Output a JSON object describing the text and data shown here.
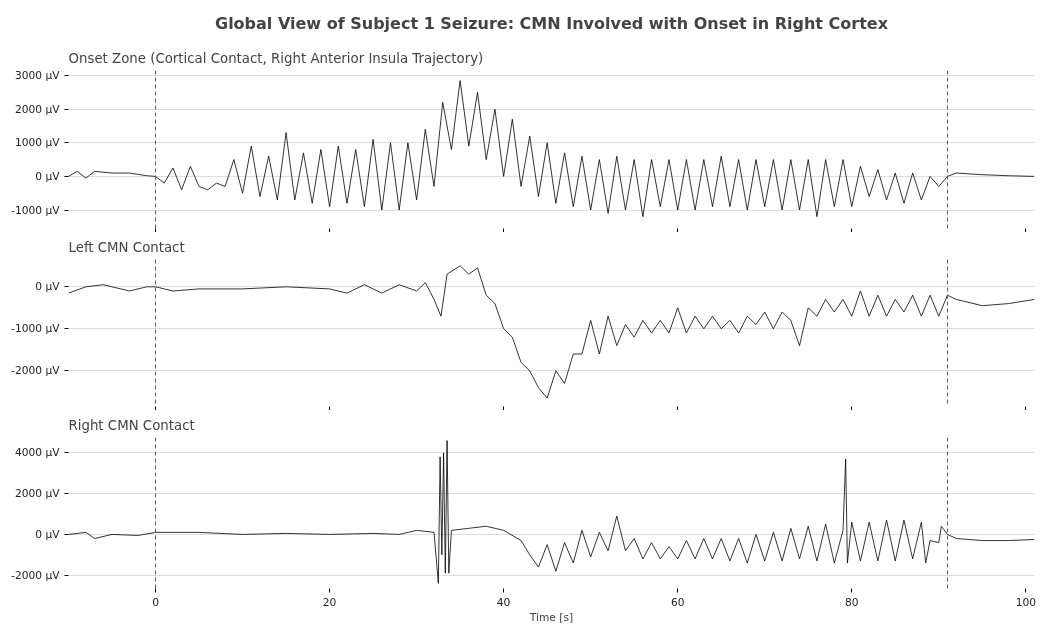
{
  "chart_data": [
    {
      "type": "line",
      "title": "Global View of Subject 1 Seizure: CMN Involved with Onset in Right Cortex",
      "subtitle": "Onset Zone (Cortical Contact, Right Anterior Insula Trajectory)",
      "xlim": [
        -10,
        101
      ],
      "xticks": [
        0,
        20,
        40,
        60,
        80,
        100
      ],
      "ylim": [
        -1550,
        3150
      ],
      "yticks": [
        {
          "value": -1000,
          "label": "-1000 µV"
        },
        {
          "value": 0,
          "label": "0 µV"
        },
        {
          "value": 1000,
          "label": "1000 µV"
        },
        {
          "value": 2000,
          "label": "2000 µV"
        },
        {
          "value": 3000,
          "label": "3000 µV"
        }
      ],
      "grid": "y",
      "tick_labels": "y",
      "series": [
        {
          "color": "#000000",
          "x": [
            -10,
            -9,
            -8,
            -7,
            -5,
            -3,
            -1,
            0,
            1,
            2,
            3,
            4,
            5,
            6,
            7,
            8,
            9,
            10,
            11,
            12,
            13,
            14,
            15,
            16,
            17,
            18,
            19,
            20,
            21,
            22,
            23,
            24,
            25,
            26,
            27,
            28,
            29,
            30,
            31,
            32,
            33,
            34,
            35,
            36,
            37,
            38,
            39,
            40,
            41,
            42,
            43,
            44,
            45,
            46,
            47,
            48,
            49,
            50,
            51,
            52,
            53,
            54,
            55,
            56,
            57,
            58,
            59,
            60,
            61,
            62,
            63,
            64,
            65,
            66,
            67,
            68,
            69,
            70,
            71,
            72,
            73,
            74,
            75,
            76,
            77,
            78,
            79,
            80,
            81,
            82,
            83,
            84,
            85,
            86,
            87,
            88,
            89,
            90,
            91,
            92,
            95,
            98,
            101
          ],
          "values": [
            0,
            150,
            -50,
            150,
            100,
            100,
            20,
            0,
            -200,
            250,
            -400,
            300,
            -300,
            -400,
            -200,
            -300,
            500,
            -500,
            900,
            -600,
            600,
            -700,
            1300,
            -700,
            700,
            -800,
            800,
            -900,
            900,
            -800,
            800,
            -900,
            1100,
            -1000,
            1000,
            -1000,
            1000,
            -700,
            1400,
            -300,
            2200,
            800,
            2850,
            900,
            2500,
            500,
            2000,
            0,
            1700,
            -300,
            1200,
            -600,
            1000,
            -800,
            700,
            -900,
            600,
            -1000,
            500,
            -1100,
            600,
            -1000,
            500,
            -1200,
            500,
            -900,
            500,
            -1000,
            500,
            -1000,
            500,
            -900,
            600,
            -900,
            500,
            -1000,
            500,
            -900,
            500,
            -1000,
            500,
            -1000,
            500,
            -1200,
            500,
            -900,
            500,
            -900,
            300,
            -600,
            200,
            -700,
            100,
            -800,
            100,
            -700,
            0,
            -300,
            0,
            100,
            50,
            20,
            0
          ]
        }
      ],
      "ref_lines": [
        {
          "axis": "x",
          "value": 0,
          "color": "#d62728",
          "line_style": "dashed"
        },
        {
          "axis": "x",
          "value": 91,
          "color": "#d62728",
          "line_style": "dashed"
        }
      ]
    },
    {
      "type": "line",
      "title": "Left CMN Contact",
      "xlim": [
        -10,
        101
      ],
      "xticks": [
        0,
        20,
        40,
        60,
        80,
        100
      ],
      "ylim": [
        -2850,
        650
      ],
      "yticks": [
        {
          "value": -2000,
          "label": "-2000 µV"
        },
        {
          "value": -1000,
          "label": "-1000 µV"
        },
        {
          "value": 0,
          "label": "0 µV"
        }
      ],
      "grid": "y",
      "tick_labels": "y",
      "series": [
        {
          "color": "#000000",
          "x": [
            -10,
            -8,
            -6,
            -3,
            -1,
            0,
            2,
            5,
            10,
            15,
            20,
            22,
            24,
            26,
            28,
            30,
            31,
            32,
            32.8,
            33.5,
            35,
            36,
            37,
            38,
            39,
            40,
            41,
            42,
            43,
            44,
            45,
            46,
            47,
            48,
            49,
            50,
            51,
            52,
            53,
            54,
            55,
            56,
            57,
            58,
            59,
            60,
            61,
            62,
            63,
            64,
            65,
            66,
            67,
            68,
            69,
            70,
            71,
            72,
            73,
            74,
            75,
            76,
            77,
            78,
            79,
            80,
            81,
            82,
            83,
            84,
            85,
            86,
            87,
            88,
            89,
            90,
            91,
            92,
            95,
            98,
            101
          ],
          "values": [
            -150,
            0,
            50,
            -100,
            0,
            0,
            -100,
            -50,
            -50,
            0,
            -50,
            -150,
            50,
            -150,
            50,
            -100,
            100,
            -300,
            -700,
            300,
            500,
            300,
            450,
            -200,
            -400,
            -1000,
            -1200,
            -1800,
            -2000,
            -2400,
            -2650,
            -2000,
            -2300,
            -1600,
            -1600,
            -800,
            -1600,
            -700,
            -1400,
            -900,
            -1200,
            -800,
            -1100,
            -800,
            -1100,
            -500,
            -1100,
            -700,
            -1000,
            -700,
            -1000,
            -800,
            -1100,
            -700,
            -900,
            -600,
            -1000,
            -600,
            -800,
            -1400,
            -500,
            -700,
            -300,
            -600,
            -300,
            -700,
            -100,
            -700,
            -200,
            -700,
            -300,
            -600,
            -200,
            -700,
            -200,
            -700,
            -200,
            -300,
            -450,
            -400,
            -300
          ]
        }
      ],
      "ref_lines": [
        {
          "axis": "x",
          "value": 0,
          "color": "#d62728",
          "line_style": "dashed"
        },
        {
          "axis": "x",
          "value": 91,
          "color": "#d62728",
          "line_style": "dashed"
        }
      ]
    },
    {
      "type": "line",
      "title": "Right CMN Contact",
      "xlabel": "Time [s]",
      "xlim": [
        -10,
        101
      ],
      "xticks": [
        0,
        20,
        40,
        60,
        80,
        100
      ],
      "ylim": [
        -2650,
        4750
      ],
      "yticks": [
        {
          "value": -2000,
          "label": "-2000 µV"
        },
        {
          "value": 0,
          "label": "0 µV"
        },
        {
          "value": 2000,
          "label": "2000 µV"
        },
        {
          "value": 4000,
          "label": "4000 µV"
        }
      ],
      "grid": "y",
      "series": [
        {
          "color": "#000000",
          "x": [
            -10,
            -8,
            -7,
            -5,
            -2,
            0,
            5,
            10,
            15,
            20,
            25,
            28,
            30,
            32,
            32.5,
            32.7,
            32.9,
            33.1,
            33.3,
            33.5,
            33.7,
            34,
            36,
            38,
            40,
            42,
            43,
            44,
            45,
            46,
            47,
            48,
            49,
            50,
            51,
            52,
            53,
            54,
            55,
            56,
            57,
            58,
            59,
            60,
            61,
            62,
            63,
            64,
            65,
            66,
            67,
            68,
            69,
            70,
            71,
            72,
            73,
            74,
            75,
            76,
            77,
            78,
            79,
            79.3,
            79.5,
            80,
            81,
            82,
            83,
            84,
            85,
            86,
            87,
            88,
            88.5,
            89,
            90,
            90.3,
            91,
            92,
            95,
            98,
            101
          ],
          "values": [
            0,
            100,
            -200,
            0,
            -50,
            100,
            100,
            0,
            50,
            0,
            50,
            0,
            200,
            100,
            -2400,
            3800,
            -1000,
            4000,
            -1900,
            4600,
            -1900,
            200,
            300,
            400,
            200,
            -300,
            -1000,
            -1600,
            -500,
            -1800,
            -400,
            -1400,
            200,
            -1100,
            100,
            -800,
            900,
            -800,
            -200,
            -1200,
            -400,
            -1200,
            -600,
            -1200,
            -300,
            -1200,
            -200,
            -1200,
            -200,
            -1300,
            -200,
            -1400,
            0,
            -1300,
            100,
            -1300,
            300,
            -1200,
            400,
            -1300,
            500,
            -1400,
            200,
            3700,
            -1400,
            600,
            -1300,
            600,
            -1300,
            700,
            -1300,
            700,
            -1200,
            600,
            -1400,
            -300,
            -400,
            400,
            0,
            -200,
            -300,
            -300,
            -250
          ]
        }
      ],
      "ref_lines": [
        {
          "axis": "x",
          "value": 0,
          "color": "#d62728",
          "line_style": "dashed"
        },
        {
          "axis": "x",
          "value": 91,
          "color": "#d62728",
          "line_style": "dashed"
        }
      ]
    }
  ]
}
